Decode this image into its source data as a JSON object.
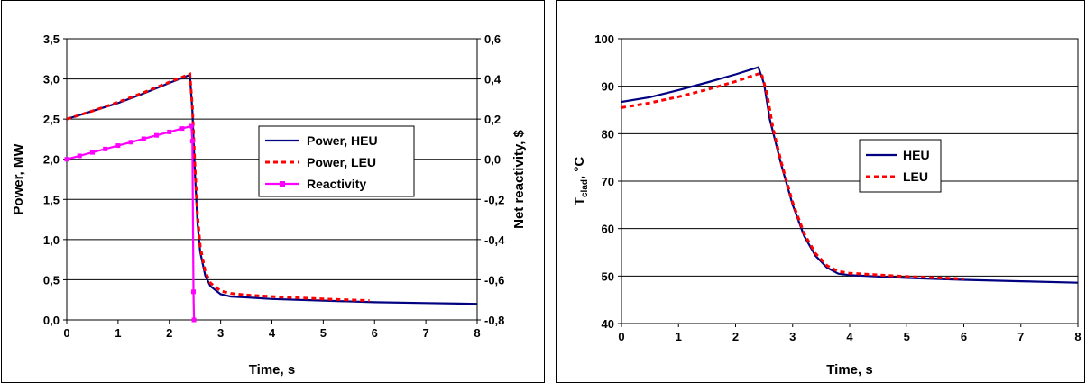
{
  "chart_data": [
    {
      "type": "line",
      "xlabel": "Time, s",
      "ylabel": "Power, MW",
      "y2label": "Net reactivity, $",
      "xlim": [
        0,
        8
      ],
      "ylim": [
        0,
        3.5
      ],
      "y2lim": [
        -0.8,
        0.6
      ],
      "xticks": [
        "0",
        "1",
        "2",
        "3",
        "4",
        "5",
        "6",
        "7",
        "8"
      ],
      "yticks": [
        "0,0",
        "0,5",
        "1,0",
        "1,5",
        "2,0",
        "2,5",
        "3,0",
        "3,5"
      ],
      "y2ticks": [
        "-0,8",
        "-0,6",
        "-0,4",
        "-0,2",
        "0,0",
        "0,2",
        "0,4",
        "0,6"
      ],
      "grid": "horizontal",
      "legend_position": "center-right",
      "series": [
        {
          "name": "Power, HEU",
          "axis": "left",
          "color": "#000080",
          "style": "solid",
          "x": [
            0,
            0.5,
            1,
            1.5,
            2,
            2.4,
            2.45,
            2.5,
            2.55,
            2.6,
            2.7,
            2.8,
            3,
            3.2,
            3.5,
            4,
            5,
            6,
            7,
            8
          ],
          "y": [
            2.5,
            2.6,
            2.7,
            2.82,
            2.95,
            3.05,
            2.6,
            1.8,
            1.2,
            0.85,
            0.55,
            0.42,
            0.32,
            0.29,
            0.28,
            0.26,
            0.24,
            0.22,
            0.21,
            0.2
          ]
        },
        {
          "name": "Power, LEU",
          "axis": "left",
          "color": "#ff0000",
          "style": "dotted",
          "x": [
            0,
            0.5,
            1,
            1.5,
            2,
            2.4,
            2.45,
            2.5,
            2.55,
            2.6,
            2.7,
            2.8,
            3,
            3.2,
            3.5,
            4,
            5,
            5.9
          ],
          "y": [
            2.5,
            2.6,
            2.71,
            2.83,
            2.96,
            3.06,
            2.65,
            1.9,
            1.3,
            0.92,
            0.6,
            0.46,
            0.36,
            0.33,
            0.31,
            0.29,
            0.26,
            0.24
          ]
        },
        {
          "name": "Reactivity",
          "axis": "right",
          "color": "#ff00ff",
          "style": "solid-markers",
          "x": [
            0,
            0.25,
            0.5,
            0.75,
            1,
            1.25,
            1.5,
            1.75,
            2,
            2.25,
            2.43,
            2.45,
            2.47,
            2.48
          ],
          "y": [
            0.0,
            0.017,
            0.034,
            0.051,
            0.068,
            0.085,
            0.102,
            0.119,
            0.136,
            0.153,
            0.165,
            0.09,
            -0.66,
            -0.8
          ]
        }
      ]
    },
    {
      "type": "line",
      "xlabel": "Time, s",
      "ylabel": "T",
      "ylabel_sub": "clad",
      "ylabel_suffix": ", °C",
      "xlim": [
        0,
        8
      ],
      "ylim": [
        40,
        100
      ],
      "xticks": [
        "0",
        "1",
        "2",
        "3",
        "4",
        "5",
        "6",
        "7",
        "8"
      ],
      "yticks": [
        "40",
        "50",
        "60",
        "70",
        "80",
        "90",
        "100"
      ],
      "grid": "horizontal",
      "legend_position": "center-right",
      "series": [
        {
          "name": "HEU",
          "color": "#000080",
          "style": "solid",
          "x": [
            0,
            0.5,
            1,
            1.5,
            2,
            2.4,
            2.5,
            2.6,
            2.8,
            3,
            3.2,
            3.4,
            3.6,
            3.8,
            4,
            5,
            6,
            7,
            8
          ],
          "y": [
            86.7,
            87.7,
            89.2,
            90.8,
            92.5,
            94.0,
            90.5,
            83.0,
            73.5,
            65.0,
            58.5,
            54.3,
            51.8,
            50.5,
            50.2,
            49.6,
            49.2,
            48.9,
            48.6
          ]
        },
        {
          "name": "LEU",
          "color": "#ff0000",
          "style": "dotted",
          "x": [
            0,
            0.5,
            1,
            1.5,
            2,
            2.45,
            2.55,
            2.65,
            2.8,
            3,
            3.2,
            3.4,
            3.6,
            3.8,
            4,
            5,
            6
          ],
          "y": [
            85.5,
            86.5,
            87.8,
            89.3,
            91.0,
            92.8,
            88.5,
            81.5,
            74.0,
            65.5,
            59.0,
            54.8,
            52.2,
            51.0,
            50.6,
            49.9,
            49.4
          ]
        }
      ]
    }
  ]
}
